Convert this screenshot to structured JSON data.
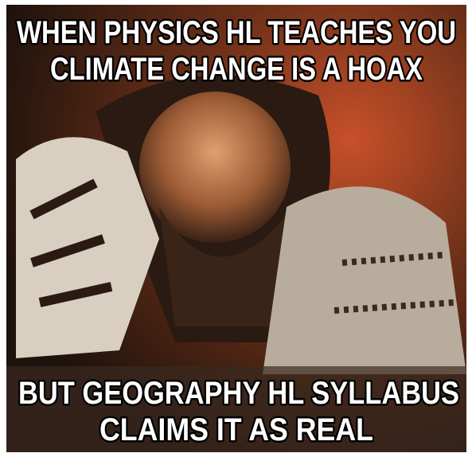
{
  "meme": {
    "top_text": [
      "WHEN PHYSICS HL TEACHES YOU",
      "CLIMATE CHANGE IS A HOAX"
    ],
    "bottom_text": [
      "BUT GEOGRAPHY HL SYLLABUS",
      "CLAIMS IT AS REAL"
    ]
  }
}
